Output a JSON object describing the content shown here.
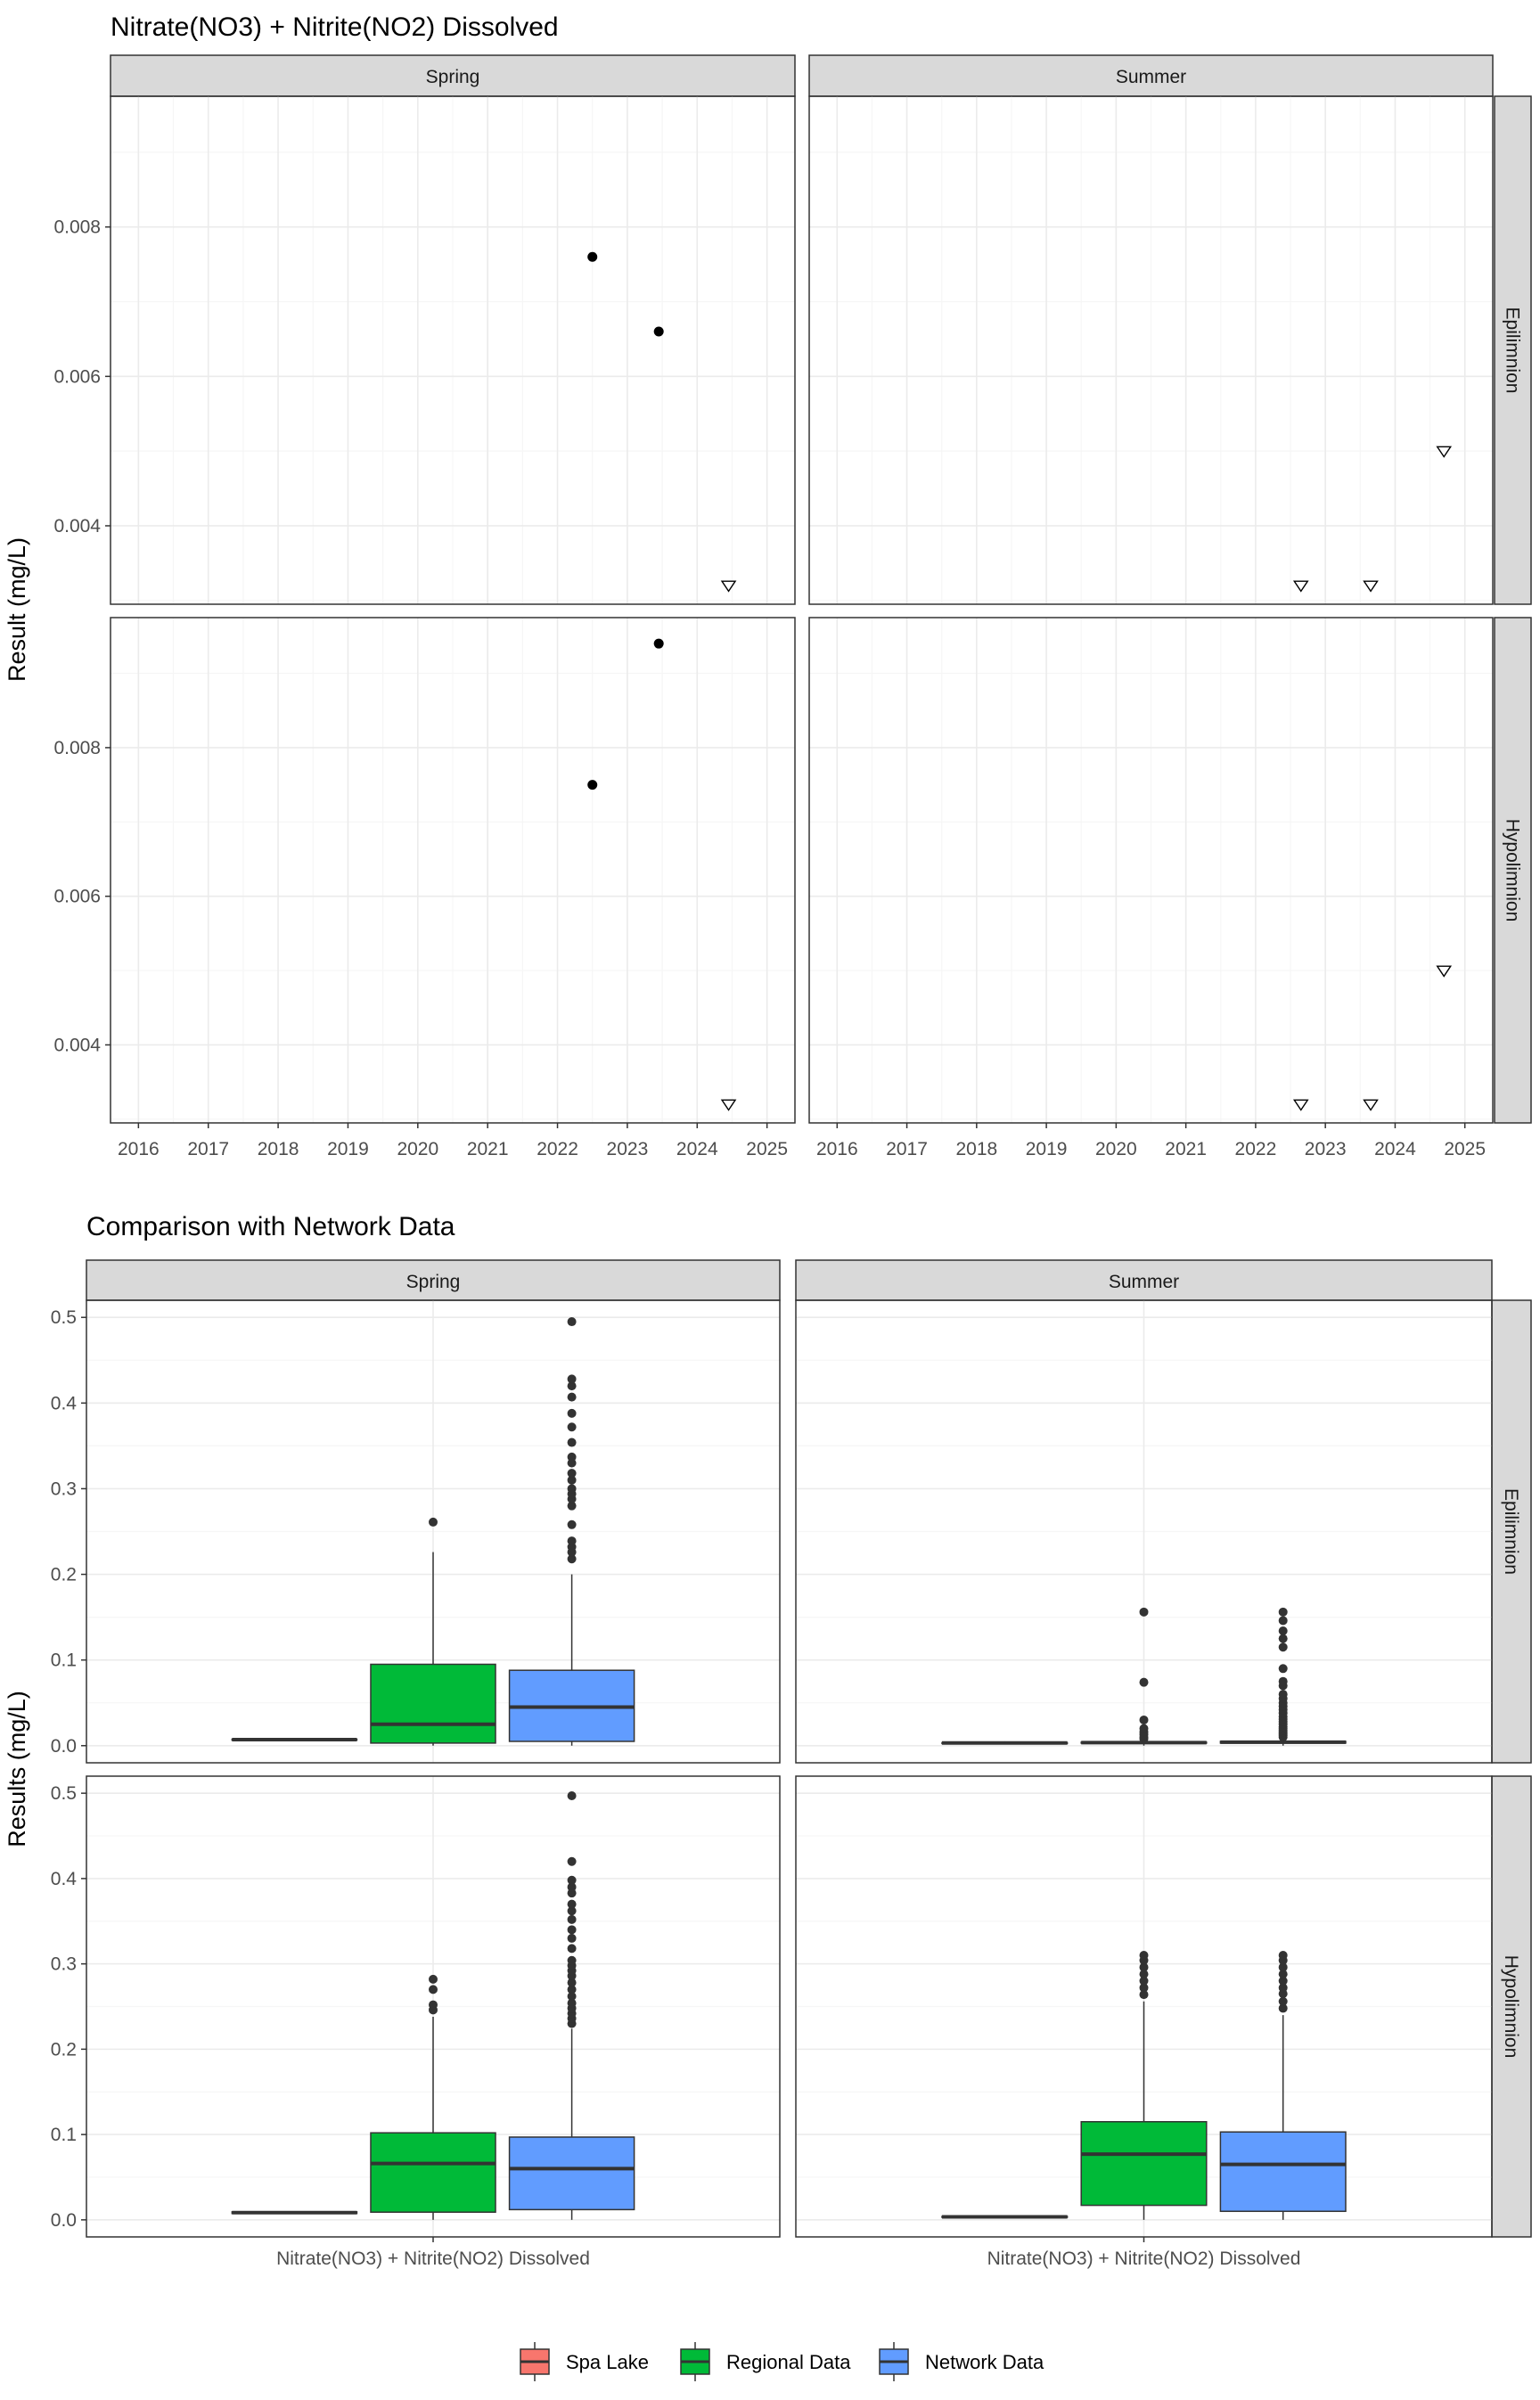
{
  "chart_data": [
    {
      "type": "scatter",
      "title": "Nitrate(NO3) + Nitrite(NO2) Dissolved",
      "ylabel": "Result (mg/L)",
      "xlabel": "",
      "columns": [
        "Spring",
        "Summer"
      ],
      "rows": [
        "Epilimnion",
        "Hypolimnion"
      ],
      "x_ticks": [
        "2016",
        "2017",
        "2018",
        "2019",
        "2020",
        "2021",
        "2022",
        "2023",
        "2024",
        "2025"
      ],
      "xlim": [
        2015.6,
        2025.4
      ],
      "grid": true,
      "panels": [
        {
          "column": "Spring",
          "row": "Epilimnion",
          "ylim": [
            0.00295,
            0.00975
          ],
          "y_ticks": [
            "0.004",
            "0.006",
            "0.008"
          ],
          "points": [
            {
              "x": 2022.5,
              "y": 0.0076,
              "shape": "filled-circle"
            },
            {
              "x": 2023.45,
              "y": 0.0066,
              "shape": "filled-circle"
            },
            {
              "x": 2024.45,
              "y": 0.0032,
              "shape": "open-triangle-down"
            }
          ]
        },
        {
          "column": "Summer",
          "row": "Epilimnion",
          "ylim": [
            0.00295,
            0.00975
          ],
          "y_ticks": [
            "0.004",
            "0.006",
            "0.008"
          ],
          "points": [
            {
              "x": 2022.65,
              "y": 0.0032,
              "shape": "open-triangle-down"
            },
            {
              "x": 2023.65,
              "y": 0.0032,
              "shape": "open-triangle-down"
            },
            {
              "x": 2024.7,
              "y": 0.005,
              "shape": "open-triangle-down"
            }
          ]
        },
        {
          "column": "Spring",
          "row": "Hypolimnion",
          "ylim": [
            0.00295,
            0.00975
          ],
          "y_ticks": [
            "0.004",
            "0.006",
            "0.008"
          ],
          "points": [
            {
              "x": 2022.5,
              "y": 0.0075,
              "shape": "filled-circle"
            },
            {
              "x": 2023.45,
              "y": 0.0094,
              "shape": "filled-circle"
            },
            {
              "x": 2024.45,
              "y": 0.0032,
              "shape": "open-triangle-down"
            }
          ]
        },
        {
          "column": "Summer",
          "row": "Hypolimnion",
          "ylim": [
            0.00295,
            0.00975
          ],
          "y_ticks": [
            "0.004",
            "0.006",
            "0.008"
          ],
          "points": [
            {
              "x": 2022.65,
              "y": 0.0032,
              "shape": "open-triangle-down"
            },
            {
              "x": 2023.65,
              "y": 0.0032,
              "shape": "open-triangle-down"
            },
            {
              "x": 2024.7,
              "y": 0.005,
              "shape": "open-triangle-down"
            }
          ]
        }
      ]
    },
    {
      "type": "box",
      "title": "Comparison with Network Data",
      "ylabel": "Results (mg/L)",
      "xlabel": "",
      "columns": [
        "Spring",
        "Summer"
      ],
      "rows": [
        "Epilimnion",
        "Hypolimnion"
      ],
      "category": "Nitrate(NO3) + Nitrite(NO2) Dissolved",
      "ylim": [
        -0.02,
        0.52
      ],
      "y_ticks": [
        "0.0",
        "0.1",
        "0.2",
        "0.3",
        "0.4",
        "0.5"
      ],
      "y_tick_values": [
        0,
        0.1,
        0.2,
        0.3,
        0.4,
        0.5
      ],
      "grid": true,
      "legend": {
        "position": "bottom",
        "items": [
          {
            "name": "Spa Lake",
            "color": "#F8766D"
          },
          {
            "name": "Regional Data",
            "color": "#00BA38"
          },
          {
            "name": "Network Data",
            "color": "#619CFF"
          }
        ]
      },
      "panels": [
        {
          "column": "Spring",
          "row": "Epilimnion",
          "boxes": [
            {
              "series": "Spa Lake",
              "q1": 0.0065,
              "median": 0.007,
              "q3": 0.0075,
              "lower": 0.0065,
              "upper": 0.0075,
              "outliers": []
            },
            {
              "series": "Regional Data",
              "q1": 0.003,
              "median": 0.025,
              "q3": 0.095,
              "lower": 0.0,
              "upper": 0.226,
              "outliers": [
                0.261
              ]
            },
            {
              "series": "Network Data",
              "q1": 0.005,
              "median": 0.045,
              "q3": 0.088,
              "lower": 0.0,
              "upper": 0.2,
              "outliers": [
                0.218,
                0.226,
                0.232,
                0.239,
                0.258,
                0.28,
                0.288,
                0.294,
                0.3,
                0.31,
                0.318,
                0.33,
                0.337,
                0.354,
                0.372,
                0.388,
                0.407,
                0.42,
                0.428,
                0.495
              ]
            }
          ]
        },
        {
          "column": "Summer",
          "row": "Epilimnion",
          "boxes": [
            {
              "series": "Spa Lake",
              "q1": 0.003,
              "median": 0.0032,
              "q3": 0.0035,
              "lower": 0.003,
              "upper": 0.005,
              "outliers": []
            },
            {
              "series": "Regional Data",
              "q1": 0.003,
              "median": 0.0035,
              "q3": 0.004,
              "lower": 0.0,
              "upper": 0.006,
              "outliers": [
                0.008,
                0.01,
                0.013,
                0.016,
                0.02,
                0.03,
                0.074,
                0.156
              ]
            },
            {
              "series": "Network Data",
              "q1": 0.003,
              "median": 0.004,
              "q3": 0.005,
              "lower": 0.0,
              "upper": 0.008,
              "outliers": [
                0.01,
                0.012,
                0.014,
                0.016,
                0.018,
                0.02,
                0.022,
                0.025,
                0.028,
                0.031,
                0.034,
                0.038,
                0.042,
                0.046,
                0.05,
                0.055,
                0.06,
                0.07,
                0.075,
                0.09,
                0.115,
                0.125,
                0.134,
                0.146,
                0.156
              ]
            }
          ]
        },
        {
          "column": "Spring",
          "row": "Hypolimnion",
          "boxes": [
            {
              "series": "Spa Lake",
              "q1": 0.0075,
              "median": 0.0085,
              "q3": 0.0094,
              "lower": 0.0075,
              "upper": 0.0094,
              "outliers": []
            },
            {
              "series": "Regional Data",
              "q1": 0.009,
              "median": 0.066,
              "q3": 0.102,
              "lower": 0.0,
              "upper": 0.238,
              "outliers": [
                0.246,
                0.252,
                0.27,
                0.282
              ]
            },
            {
              "series": "Network Data",
              "q1": 0.012,
              "median": 0.06,
              "q3": 0.097,
              "lower": 0.0,
              "upper": 0.224,
              "outliers": [
                0.23,
                0.236,
                0.242,
                0.248,
                0.254,
                0.262,
                0.27,
                0.278,
                0.286,
                0.292,
                0.298,
                0.304,
                0.318,
                0.33,
                0.34,
                0.352,
                0.362,
                0.37,
                0.383,
                0.39,
                0.398,
                0.42,
                0.497
              ]
            }
          ]
        },
        {
          "column": "Summer",
          "row": "Hypolimnion",
          "boxes": [
            {
              "series": "Spa Lake",
              "q1": 0.003,
              "median": 0.0035,
              "q3": 0.004,
              "lower": 0.003,
              "upper": 0.005,
              "outliers": []
            },
            {
              "series": "Regional Data",
              "q1": 0.017,
              "median": 0.077,
              "q3": 0.115,
              "lower": 0.0,
              "upper": 0.256,
              "outliers": [
                0.264,
                0.272,
                0.28,
                0.288,
                0.296,
                0.304,
                0.31
              ]
            },
            {
              "series": "Network Data",
              "q1": 0.01,
              "median": 0.065,
              "q3": 0.103,
              "lower": 0.0,
              "upper": 0.24,
              "outliers": [
                0.248,
                0.256,
                0.265,
                0.272,
                0.28,
                0.288,
                0.296,
                0.304,
                0.31
              ]
            }
          ]
        }
      ]
    }
  ]
}
